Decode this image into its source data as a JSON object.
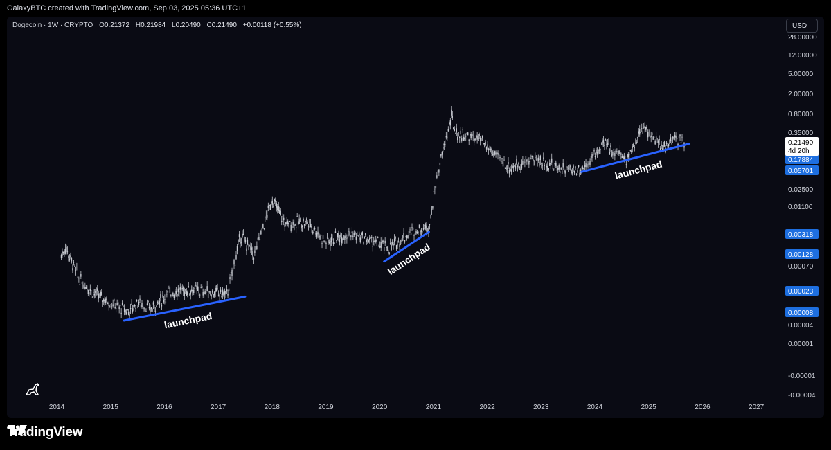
{
  "header": {
    "attribution": "GalaxyBTC created with TradingView.com, Sep 03, 2025 05:36 UTC+1"
  },
  "legend": {
    "symbol": "Dogecoin · 1W · CRYPTO",
    "o_label": "O",
    "o_value": "0.21372",
    "h_label": "H",
    "h_value": "0.21984",
    "l_label": "L",
    "l_value": "0.20490",
    "c_label": "C",
    "c_value": "0.21490",
    "change": "+0.00118 (+0.55%)"
  },
  "currency_button": "USD",
  "price_tag": {
    "value": "0.21490",
    "countdown": "4d 20h"
  },
  "footer": {
    "brand": "TradingView"
  },
  "colors": {
    "background": "#0a0b14",
    "candles": "#c7cad1",
    "trendline": "#2962ff",
    "axis_label_highlight": "#1e6fe0"
  },
  "icons": [
    "dino-icon",
    "tradingview-logo-icon"
  ],
  "chart_data": {
    "type": "candlestick",
    "title": "Dogecoin · 1W · CRYPTO",
    "y_scale": "log",
    "y_axis_labels": [
      "28.00000",
      "12.00000",
      "5.00000",
      "2.00000",
      "0.80000",
      "0.35000",
      "0.02500",
      "0.01100",
      "0.00070",
      "0.00004",
      "0.00001",
      "-0.00001",
      "-0.00004"
    ],
    "y_axis_highlighted": [
      "0.17884",
      "0.05701",
      "0.00318",
      "0.00128",
      "0.00023",
      "0.00008"
    ],
    "x_axis_labels": [
      "2014",
      "2015",
      "2016",
      "2017",
      "2018",
      "2019",
      "2020",
      "2021",
      "2022",
      "2023",
      "2024",
      "2025",
      "2026",
      "2027"
    ],
    "last_close": 0.2149,
    "price_path_approx": [
      {
        "x": "2014-02",
        "y": 0.0012
      },
      {
        "x": "2014-03",
        "y": 0.0017
      },
      {
        "x": "2014-06",
        "y": 0.0004
      },
      {
        "x": "2014-09",
        "y": 0.00022
      },
      {
        "x": "2015-02",
        "y": 0.00012
      },
      {
        "x": "2015-05",
        "y": 9e-05
      },
      {
        "x": "2015-07",
        "y": 0.00014
      },
      {
        "x": "2015-10",
        "y": 0.0001
      },
      {
        "x": "2016-02",
        "y": 0.00021
      },
      {
        "x": "2016-07",
        "y": 0.00025
      },
      {
        "x": "2016-11",
        "y": 0.00022
      },
      {
        "x": "2017-03",
        "y": 0.0002
      },
      {
        "x": "2017-06",
        "y": 0.003
      },
      {
        "x": "2017-09",
        "y": 0.0012
      },
      {
        "x": "2018-01",
        "y": 0.016
      },
      {
        "x": "2018-04",
        "y": 0.005
      },
      {
        "x": "2018-09",
        "y": 0.0055
      },
      {
        "x": "2019-01",
        "y": 0.0022
      },
      {
        "x": "2019-06",
        "y": 0.0033
      },
      {
        "x": "2019-12",
        "y": 0.0022
      },
      {
        "x": "2020-03",
        "y": 0.0016
      },
      {
        "x": "2020-08",
        "y": 0.0035
      },
      {
        "x": "2020-12",
        "y": 0.0045
      },
      {
        "x": "2021-02",
        "y": 0.055
      },
      {
        "x": "2021-05",
        "y": 0.68
      },
      {
        "x": "2021-06",
        "y": 0.32
      },
      {
        "x": "2021-11",
        "y": 0.25
      },
      {
        "x": "2022-06",
        "y": 0.065
      },
      {
        "x": "2022-11",
        "y": 0.1
      },
      {
        "x": "2023-06",
        "y": 0.063
      },
      {
        "x": "2023-10",
        "y": 0.06
      },
      {
        "x": "2024-03",
        "y": 0.2
      },
      {
        "x": "2024-08",
        "y": 0.1
      },
      {
        "x": "2024-12",
        "y": 0.45
      },
      {
        "x": "2025-04",
        "y": 0.16
      },
      {
        "x": "2025-07",
        "y": 0.25
      },
      {
        "x": "2025-09",
        "y": 0.2149
      }
    ],
    "annotations": [
      {
        "text": "launchpad",
        "line_from": {
          "x": "2015-04",
          "y": 6e-05
        },
        "line_to": {
          "x": "2017-07",
          "y": 0.00018
        }
      },
      {
        "text": "launchpad",
        "line_from": {
          "x": "2020-02",
          "y": 0.0009
        },
        "line_to": {
          "x": "2020-12",
          "y": 0.0035
        }
      },
      {
        "text": "launchpad",
        "line_from": {
          "x": "2023-10",
          "y": 0.055
        },
        "line_to": {
          "x": "2025-10",
          "y": 0.2
        }
      }
    ]
  }
}
